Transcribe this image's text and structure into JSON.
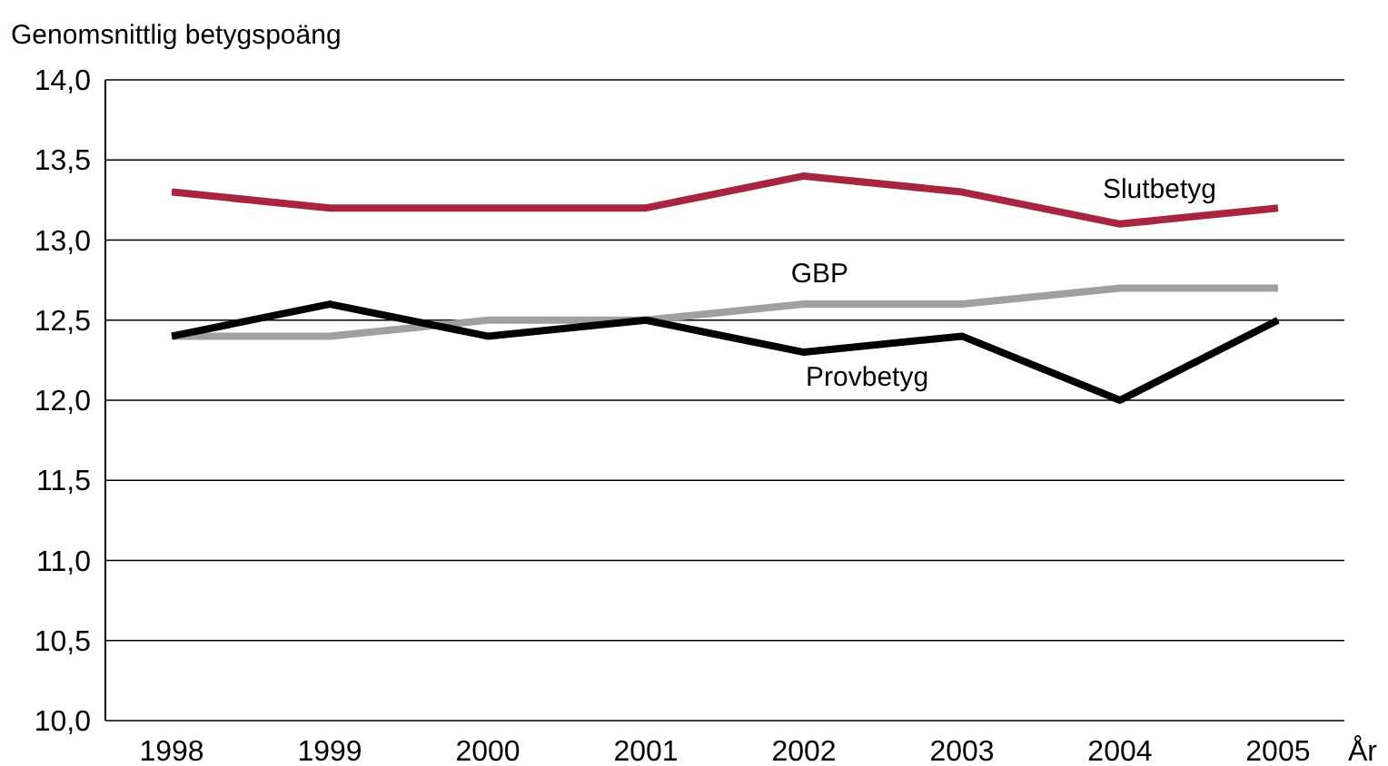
{
  "chart_data": {
    "type": "line",
    "ylabel": "Genomsnittlig betygspoäng",
    "xlabel": "År",
    "categories": [
      "1998",
      "1999",
      "2000",
      "2001",
      "2002",
      "2003",
      "2004",
      "2005"
    ],
    "series": [
      {
        "name": "Slutbetyg",
        "color": "#a8253f",
        "values": [
          13.3,
          13.2,
          13.2,
          13.2,
          13.4,
          13.3,
          13.1,
          13.2
        ]
      },
      {
        "name": "GBP",
        "color": "#a0a0a0",
        "values": [
          12.4,
          12.4,
          12.5,
          12.5,
          12.6,
          12.6,
          12.7,
          12.7
        ]
      },
      {
        "name": "Provbetyg",
        "color": "#000000",
        "values": [
          12.4,
          12.6,
          12.4,
          12.5,
          12.3,
          12.4,
          12.0,
          12.5
        ]
      }
    ],
    "ylim": [
      10,
      14
    ],
    "yticks": [
      {
        "value": 10,
        "label": "10,0"
      },
      {
        "value": 10.5,
        "label": "10,5"
      },
      {
        "value": 11,
        "label": "11,0"
      },
      {
        "value": 11.5,
        "label": "11,5"
      },
      {
        "value": 12,
        "label": "12,0"
      },
      {
        "value": 12.5,
        "label": "12,5"
      },
      {
        "value": 13,
        "label": "13,0"
      },
      {
        "value": 13.5,
        "label": "13,5"
      },
      {
        "value": 14,
        "label": "14,0"
      }
    ],
    "grid": "y",
    "legend": false,
    "marker": "none",
    "line_style": "solid"
  }
}
